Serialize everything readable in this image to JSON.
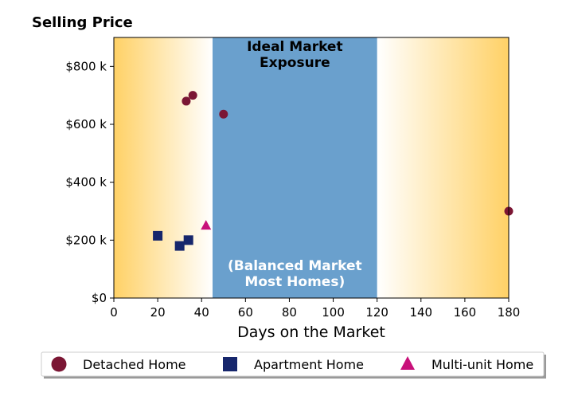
{
  "chart_data": {
    "type": "scatter",
    "title": "Selling Price",
    "xlabel": "Days on the Market",
    "ylabel": "",
    "xlim": [
      0,
      180
    ],
    "ylim": [
      0,
      900000
    ],
    "xticks": [
      0,
      20,
      40,
      60,
      80,
      100,
      120,
      140,
      160,
      180
    ],
    "xtick_labels": [
      "0",
      "20",
      "40",
      "60",
      "80",
      "100",
      "120",
      "140",
      "160",
      "180"
    ],
    "yticks": [
      0,
      200000,
      400000,
      600000,
      800000
    ],
    "ytick_labels": [
      "$0",
      "$200 k",
      "$400 k",
      "$600 k",
      "$800 k"
    ],
    "grid": false,
    "legend_position": "bottom",
    "band": {
      "x_start": 45,
      "x_end": 120,
      "color": "#6aa0cd",
      "label_top": "Ideal Market\nExposure",
      "label_bottom": "(Balanced Market\nMost Homes)"
    },
    "gradient": {
      "edge_color": "#ffd166",
      "center_color": "#ffffff"
    },
    "series": [
      {
        "name": "Detached Home",
        "marker": "circle",
        "color": "#7b1634",
        "points": [
          {
            "x": 33,
            "y": 680000
          },
          {
            "x": 36,
            "y": 700000
          },
          {
            "x": 50,
            "y": 635000
          },
          {
            "x": 180,
            "y": 300000
          }
        ]
      },
      {
        "name": "Apartment Home",
        "marker": "square",
        "color": "#16266c",
        "points": [
          {
            "x": 20,
            "y": 215000
          },
          {
            "x": 30,
            "y": 180000
          },
          {
            "x": 34,
            "y": 200000
          }
        ]
      },
      {
        "name": "Multi-unit Home",
        "marker": "triangle",
        "color": "#c8107a",
        "points": [
          {
            "x": 42,
            "y": 250000
          }
        ]
      }
    ]
  }
}
